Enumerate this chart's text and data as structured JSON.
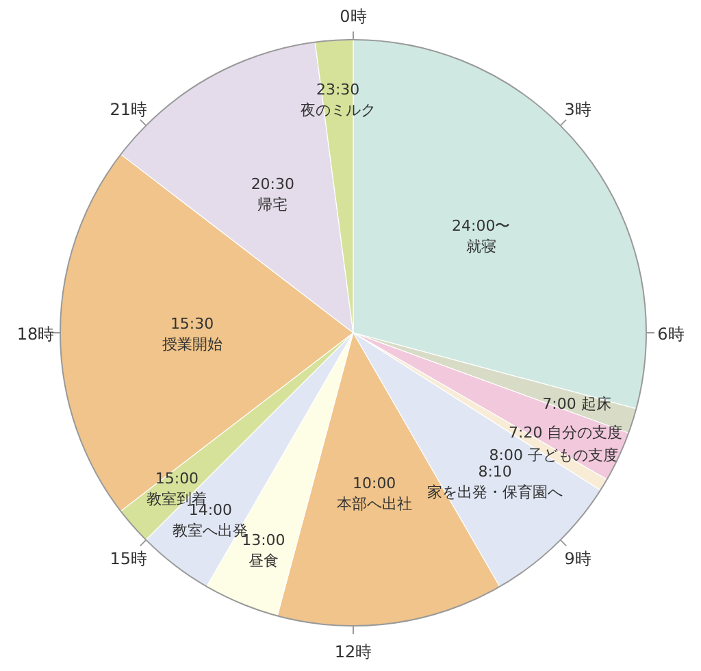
{
  "chart_data": {
    "type": "pie",
    "categories": [
      "24:00〜就寝",
      "7:00 起床",
      "7:20 自分の支度",
      "8:00 子どもの支度",
      "8:10\n家を出発・保育園へ",
      "10:00\n本部へ出社",
      "13:00\n昼食",
      "14:00\n教室へ出発",
      "15:00\n教室到着",
      "15:30\n授業開始",
      "20:30\n帰宅",
      "23:30\n夜のミルク"
    ],
    "values": [
      29.17,
      1.39,
      2.78,
      0.69,
      7.64,
      12.5,
      4.17,
      4.17,
      2.08,
      20.83,
      12.5,
      2.08
    ],
    "colors": [
      "#cfe8e2",
      "#d8dcc6",
      "#f2c8dc",
      "#f8ecd6",
      "#e0e6f3",
      "#f0c48a",
      "#fefde6",
      "#e0e6f3",
      "#d6e29a",
      "#f0c48a",
      "#e4dcea",
      "#d6e29a"
    ],
    "annotations": [
      "0時",
      "3時",
      "6時",
      "9時",
      "12時",
      "15時",
      "18時",
      "21時"
    ]
  }
}
